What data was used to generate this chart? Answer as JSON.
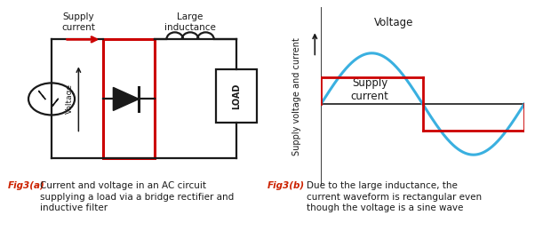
{
  "bg_color": "#e8e8e8",
  "white": "#ffffff",
  "red": "#cc0000",
  "blue": "#3ab0e0",
  "black": "#1a1a1a",
  "caption_red": "#cc2200",
  "fig_width": 6.02,
  "fig_height": 2.78,
  "supply_current_label": "Supply\ncurrent",
  "large_inductance_label": "Large\ninductance",
  "voltage_label_circuit": "Voltage",
  "load_label": "LOAD",
  "ylabel": "Supply voltage and current",
  "voltage_wave_label": "Voltage",
  "supply_current_wave_label": "Supply\ncurrent",
  "fig3a_bold": "Fig3(a)",
  "fig3a_text": " Current and voltage in an AC circuit\nsupplying a load via a bridge rectifier and\ninductive filter",
  "fig3b_bold": "Fig3(b)",
  "fig3b_text": " Due to the large inductance, the\ncurrent waveform is rectangular even\nthough the voltage is a sine wave"
}
